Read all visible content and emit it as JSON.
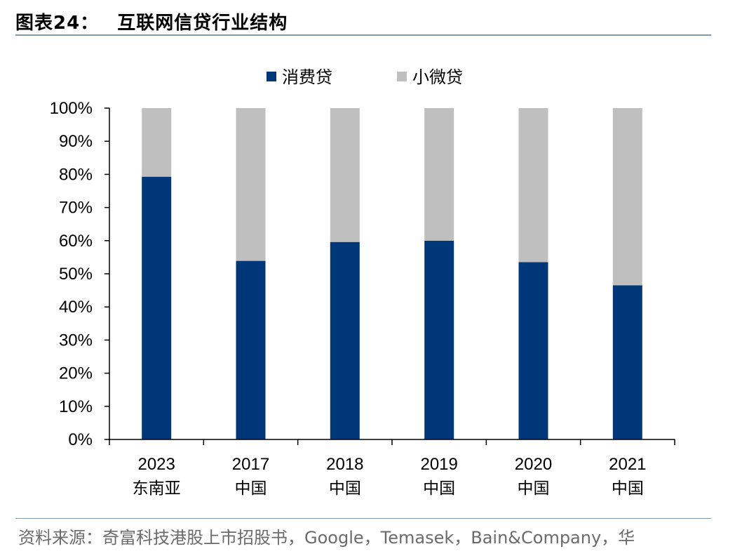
{
  "header": {
    "figure_label": "图表24：",
    "title": "互联网信贷行业结构"
  },
  "source": {
    "text": "资料来源：奇富科技港股上市招股书，Google，Temasek，Bain&Company，华"
  },
  "chart_data": {
    "type": "bar",
    "stacked": true,
    "categories": [
      "2023",
      "2017",
      "2018",
      "2019",
      "2020",
      "2021"
    ],
    "category_sublabels": [
      "东南亚",
      "中国",
      "中国",
      "中国",
      "中国",
      "中国"
    ],
    "series": [
      {
        "name": "消费贷",
        "values": [
          79.3,
          53.9,
          59.6,
          60.0,
          53.5,
          46.5
        ]
      },
      {
        "name": "小微贷",
        "values": [
          20.7,
          46.1,
          40.4,
          40.0,
          46.5,
          53.5
        ]
      }
    ],
    "ylim": [
      0,
      100
    ],
    "yticks": [
      "0%",
      "10%",
      "20%",
      "30%",
      "40%",
      "50%",
      "60%",
      "70%",
      "80%",
      "90%",
      "100%"
    ],
    "legend_position": "top-center",
    "grid": false,
    "colors": {
      "消费贷": "#003778",
      "小微贷": "#bfbfbf"
    }
  }
}
